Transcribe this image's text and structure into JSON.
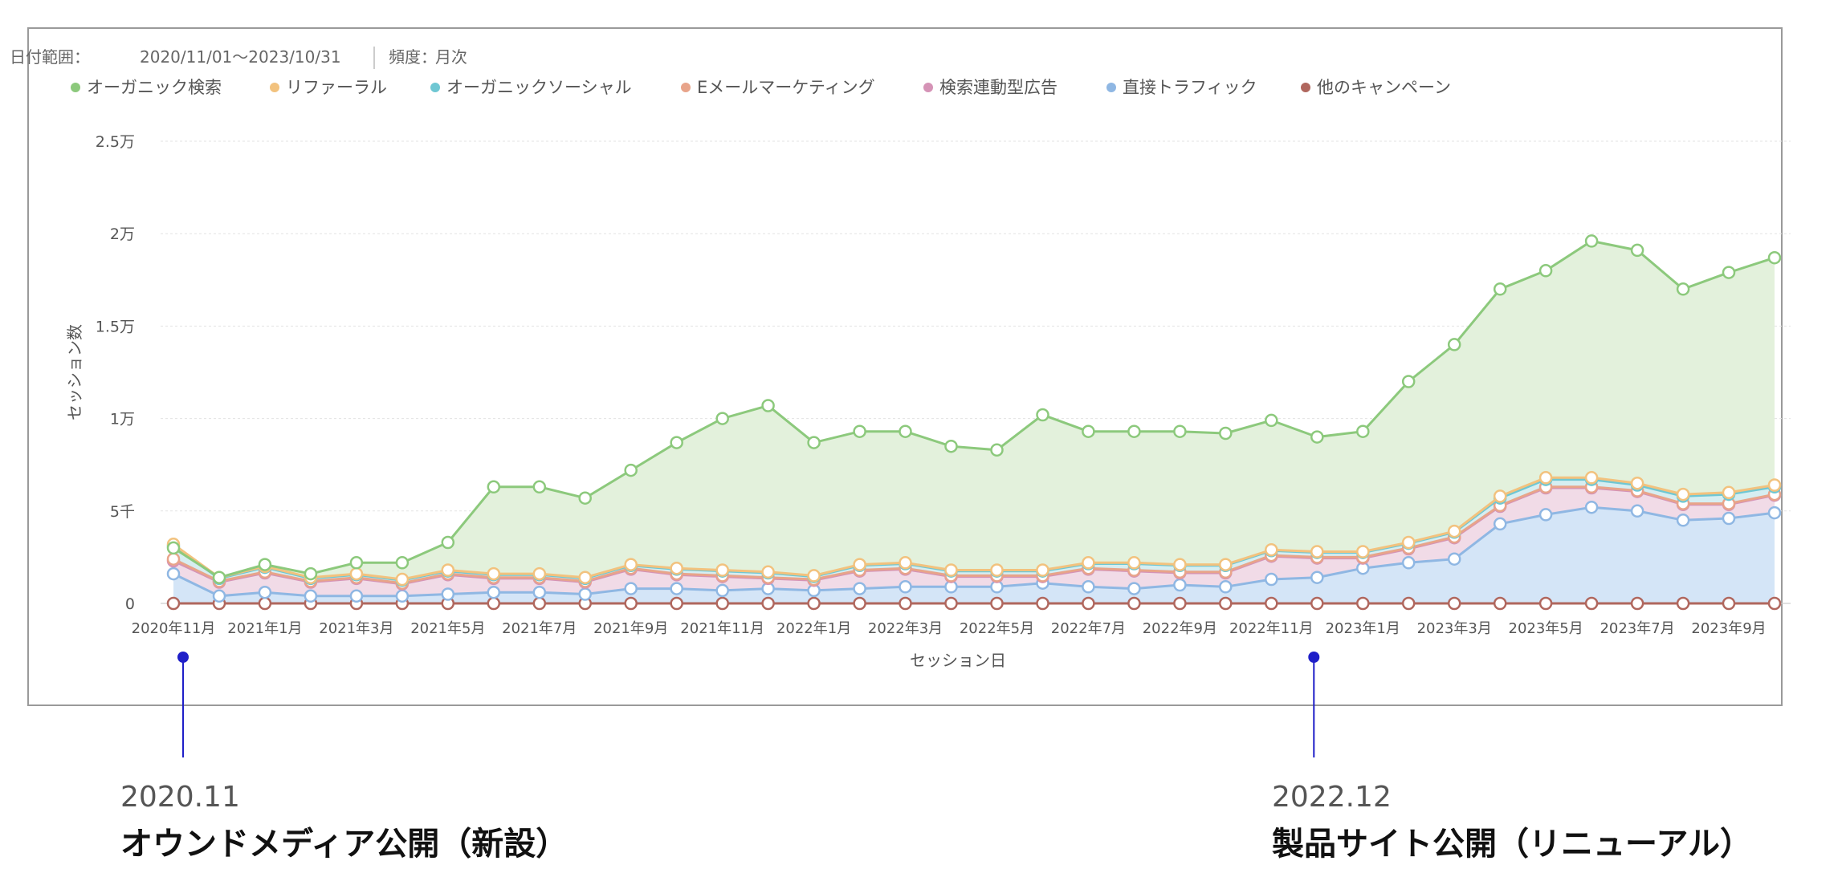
{
  "chart_data": {
    "type": "area",
    "stacked": true,
    "header": {
      "date_range_label": "日付範囲：",
      "date_range_value": "2020/11/01〜2023/10/31",
      "frequency_label": "頻度：",
      "frequency_value": "月次"
    },
    "xlabel": "セッション日",
    "ylabel": "セッション数",
    "ylim": [
      0,
      25000
    ],
    "y_ticks": [
      {
        "value": 0,
        "label": "0"
      },
      {
        "value": 5000,
        "label": "5千"
      },
      {
        "value": 10000,
        "label": "1万"
      },
      {
        "value": 15000,
        "label": "1.5万"
      },
      {
        "value": 20000,
        "label": "2万"
      },
      {
        "value": 25000,
        "label": "2.5万"
      }
    ],
    "x_tick_labels": [
      "2020年11月",
      "2021年1月",
      "2021年3月",
      "2021年5月",
      "2021年7月",
      "2021年9月",
      "2021年11月",
      "2022年1月",
      "2022年3月",
      "2022年5月",
      "2022年7月",
      "2022年9月",
      "2022年11月",
      "2023年1月",
      "2023年3月",
      "2023年5月",
      "2023年7月",
      "2023年9月"
    ],
    "x_tick_every": 2,
    "months": [
      "2020-11",
      "2020-12",
      "2021-01",
      "2021-02",
      "2021-03",
      "2021-04",
      "2021-05",
      "2021-06",
      "2021-07",
      "2021-08",
      "2021-09",
      "2021-10",
      "2021-11",
      "2021-12",
      "2022-01",
      "2022-02",
      "2022-03",
      "2022-04",
      "2022-05",
      "2022-06",
      "2022-07",
      "2022-08",
      "2022-09",
      "2022-10",
      "2022-11",
      "2022-12",
      "2023-01",
      "2023-02",
      "2023-03",
      "2023-04",
      "2023-05",
      "2023-06",
      "2023-07",
      "2023-08",
      "2023-09",
      "2023-10"
    ],
    "series": [
      {
        "name": "オーガニック検索",
        "color": "#8cc97c",
        "fill": "#e3f1dc",
        "cumulative": [
          3000,
          1400,
          2100,
          1600,
          2200,
          2200,
          3300,
          6300,
          6300,
          5700,
          7200,
          8700,
          10000,
          10700,
          8700,
          9300,
          9300,
          8500,
          8300,
          10200,
          9300,
          9300,
          9300,
          9200,
          9900,
          9000,
          9300,
          12000,
          14000,
          17000,
          18000,
          19600,
          19100,
          17000,
          17900,
          18700
        ]
      },
      {
        "name": "リファーラル",
        "color": "#f2c27e",
        "fill": "#f9e7cf",
        "cumulative": [
          3200,
          1400,
          2000,
          1400,
          1600,
          1300,
          1800,
          1600,
          1600,
          1400,
          2100,
          1900,
          1800,
          1700,
          1500,
          2100,
          2200,
          1800,
          1800,
          1800,
          2200,
          2200,
          2100,
          2100,
          2900,
          2800,
          2800,
          3300,
          3900,
          5800,
          6800,
          6800,
          6500,
          5900,
          6000,
          6400
        ]
      },
      {
        "name": "オーガニックソーシャル",
        "color": "#6fc7d3",
        "fill": "#d6eef1",
        "cumulative": [
          3100,
          1350,
          1950,
          1350,
          1550,
          1250,
          1750,
          1550,
          1550,
          1350,
          2050,
          1850,
          1750,
          1650,
          1450,
          2050,
          2150,
          1750,
          1750,
          1750,
          2150,
          2150,
          2050,
          2050,
          2850,
          2750,
          2750,
          3250,
          3850,
          5700,
          6700,
          6700,
          6400,
          5800,
          5900,
          6300
        ]
      },
      {
        "name": "Eメールマーケティング",
        "color": "#e8a48a",
        "fill": "#f7dcd1",
        "cumulative": [
          2400,
          1200,
          1700,
          1200,
          1400,
          1100,
          1600,
          1400,
          1400,
          1200,
          1900,
          1600,
          1500,
          1400,
          1300,
          1800,
          1900,
          1500,
          1500,
          1500,
          1900,
          1800,
          1700,
          1700,
          2600,
          2500,
          2500,
          3000,
          3600,
          5300,
          6300,
          6300,
          6100,
          5400,
          5400,
          5900
        ]
      },
      {
        "name": "検索連動型広告",
        "color": "#d593b6",
        "fill": "#f1dbe7",
        "cumulative": [
          2300,
          1150,
          1650,
          1150,
          1350,
          1050,
          1550,
          1350,
          1350,
          1150,
          1850,
          1550,
          1450,
          1350,
          1250,
          1750,
          1850,
          1450,
          1450,
          1450,
          1850,
          1750,
          1650,
          1650,
          2550,
          2450,
          2450,
          2950,
          3550,
          5250,
          6250,
          6250,
          6050,
          5350,
          5350,
          5850
        ]
      },
      {
        "name": "直接トラフィック",
        "color": "#8fb7e3",
        "fill": "#d4e5f7",
        "cumulative": [
          1600,
          400,
          600,
          400,
          400,
          400,
          500,
          600,
          600,
          500,
          800,
          800,
          700,
          800,
          700,
          800,
          900,
          900,
          900,
          1100,
          900,
          800,
          1000,
          900,
          1300,
          1400,
          1900,
          2200,
          2400,
          4300,
          4800,
          5200,
          5000,
          4500,
          4600,
          4900
        ]
      },
      {
        "name": "他のキャンペーン",
        "color": "#b0675e",
        "fill": "none",
        "cumulative": [
          0,
          0,
          0,
          0,
          0,
          0,
          0,
          0,
          0,
          0,
          0,
          0,
          0,
          0,
          0,
          0,
          0,
          0,
          0,
          0,
          0,
          0,
          0,
          0,
          0,
          0,
          0,
          0,
          0,
          0,
          0,
          0,
          0,
          0,
          0,
          0
        ]
      }
    ],
    "annotations": [
      {
        "month": "2020-11",
        "date": "2020.11",
        "label": "オウンドメディア公開（新設）"
      },
      {
        "month": "2022-12",
        "date": "2022.12",
        "label": "製品サイト公開（リニューアル）"
      }
    ]
  }
}
